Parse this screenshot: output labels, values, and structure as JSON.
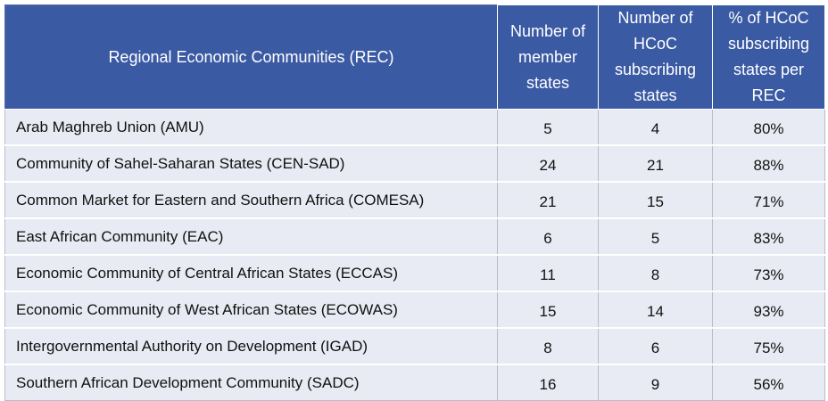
{
  "table": {
    "headers": {
      "rec": "Regional Economic Communities (REC)",
      "members": "Number of member states",
      "subscribing": "Number of HCoC subscribing states",
      "percent": "% of HCoC subscribing states per REC"
    },
    "rows": [
      {
        "name": "Arab Maghreb Union (AMU)",
        "members": "5",
        "subscribing": "4",
        "percent": "80%"
      },
      {
        "name": "Community of Sahel-Saharan States (CEN-SAD)",
        "members": "24",
        "subscribing": "21",
        "percent": "88%"
      },
      {
        "name": "Common Market for Eastern and Southern Africa (COMESA)",
        "members": "21",
        "subscribing": "15",
        "percent": "71%"
      },
      {
        "name": "East African Community (EAC)",
        "members": "6",
        "subscribing": "5",
        "percent": "83%"
      },
      {
        "name": "Economic Community of Central African States (ECCAS)",
        "members": "11",
        "subscribing": "8",
        "percent": "73%"
      },
      {
        "name": "Economic Community of West African States (ECOWAS)",
        "members": "15",
        "subscribing": "14",
        "percent": "93%"
      },
      {
        "name": "Intergovernmental Authority on Development (IGAD)",
        "members": "8",
        "subscribing": "6",
        "percent": "75%"
      },
      {
        "name": "Southern African Development Community (SADC)",
        "members": "16",
        "subscribing": "9",
        "percent": "56%"
      }
    ]
  },
  "colors": {
    "header_bg": "#3b5aa4",
    "header_text": "#ffffff",
    "row_bg": "#e9ebf4"
  }
}
